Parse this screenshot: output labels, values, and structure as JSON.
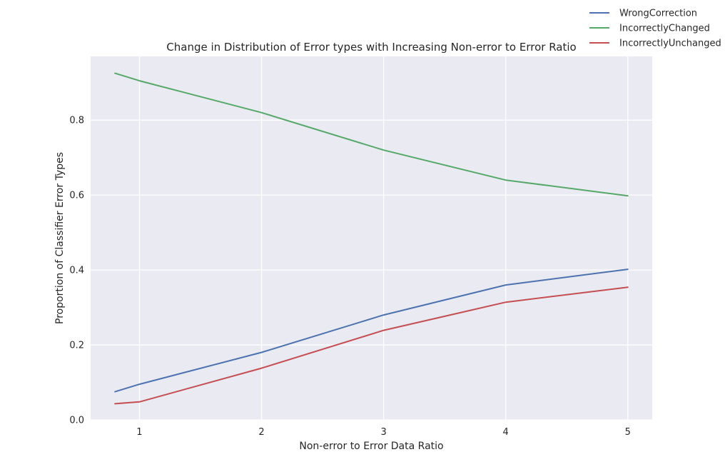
{
  "chart_data": {
    "type": "line",
    "title": "Change in Distribution of Error types with Increasing Non-error to Error Ratio",
    "xlabel": "Non-error to Error Data Ratio",
    "ylabel": "Proportion of Classifier Error Types",
    "xlim": [
      0.6,
      5.2
    ],
    "ylim": [
      0.0,
      0.97
    ],
    "xticks": [
      1,
      2,
      3,
      4,
      5
    ],
    "xtick_labels": [
      "1",
      "2",
      "3",
      "4",
      "5"
    ],
    "yticks": [
      0.0,
      0.2,
      0.4,
      0.6,
      0.8
    ],
    "ytick_labels": [
      "0.0",
      "0.2",
      "0.4",
      "0.6",
      "0.8"
    ],
    "grid": true,
    "legend_position": "top-right",
    "x": [
      0.8,
      1,
      2,
      3,
      4,
      5
    ],
    "series": [
      {
        "name": "WrongCorrection",
        "color": "#4c72b0",
        "values": [
          0.075,
          0.095,
          0.18,
          0.28,
          0.36,
          0.402
        ]
      },
      {
        "name": "IncorrectlyChanged",
        "color": "#55a868",
        "values": [
          0.925,
          0.905,
          0.82,
          0.72,
          0.64,
          0.598
        ]
      },
      {
        "name": "IncorrectlyUnchanged",
        "color": "#c44e52",
        "values": [
          0.043,
          0.048,
          0.138,
          0.239,
          0.314,
          0.354
        ]
      }
    ],
    "colors": {
      "plot_background": "#eaeaf2",
      "grid": "#ffffff",
      "text": "#262626"
    }
  }
}
